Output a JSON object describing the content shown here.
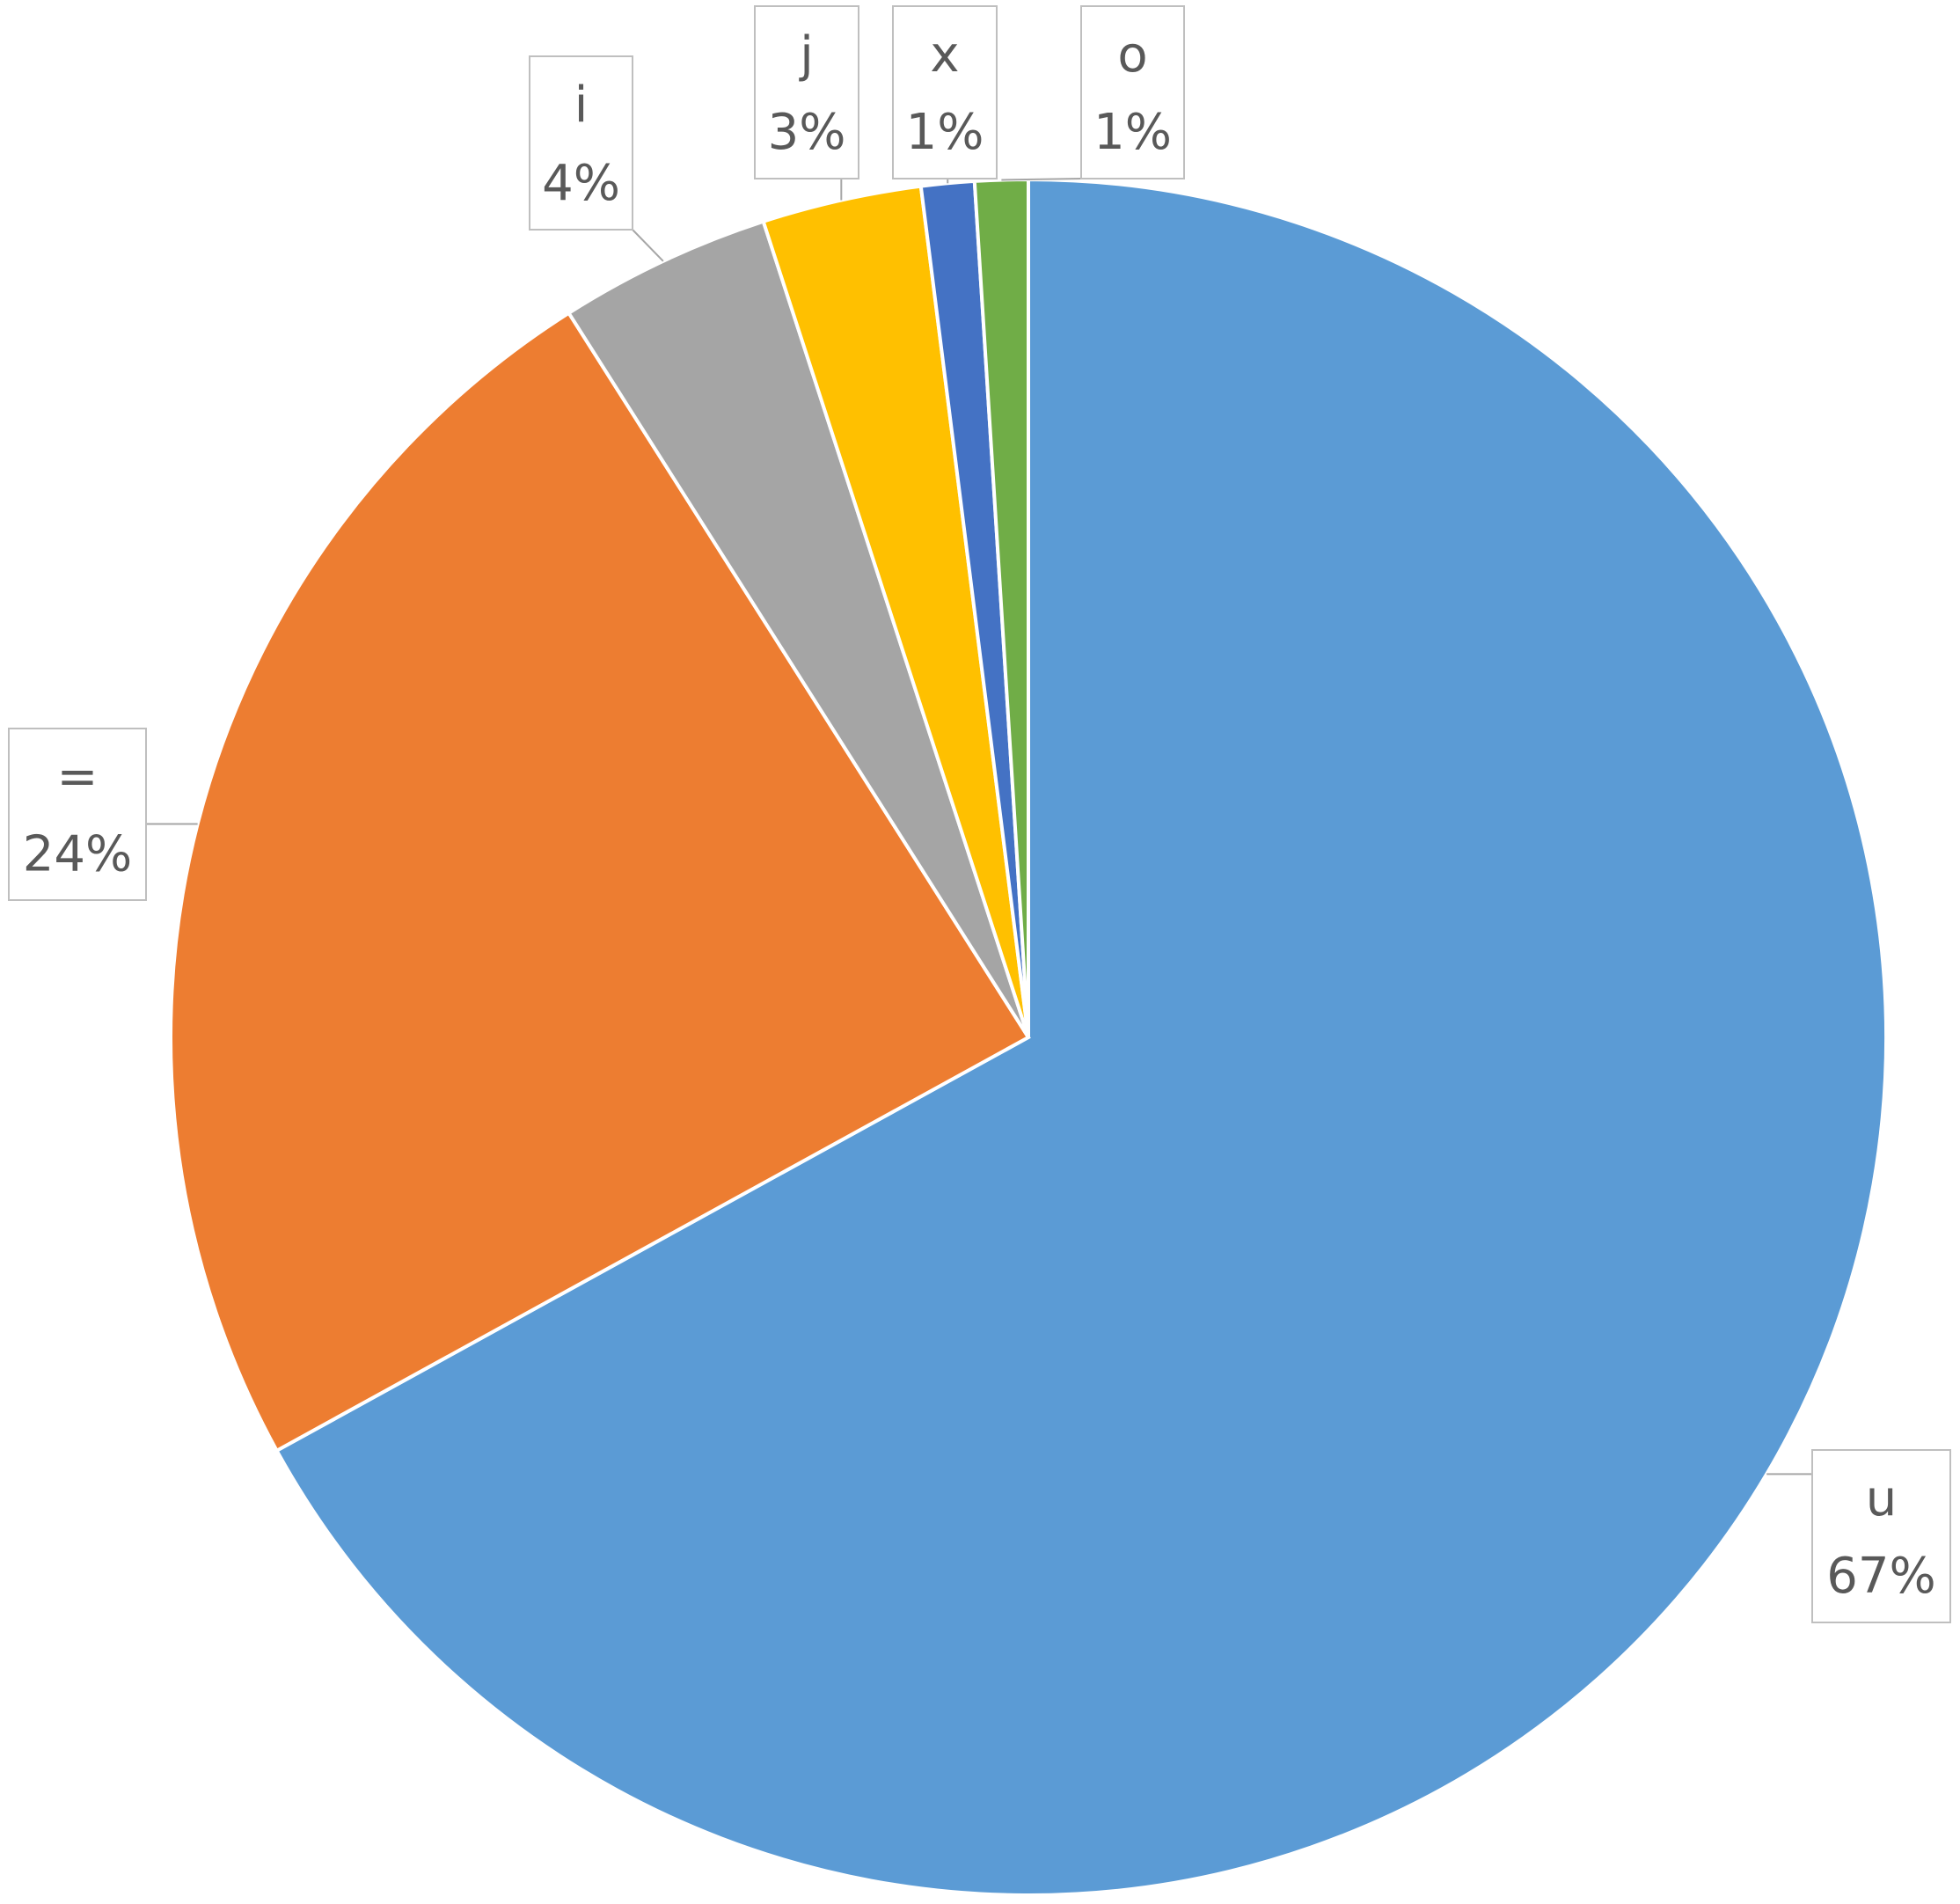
{
  "chart_data": {
    "type": "pie",
    "categories": [
      "u",
      "=",
      "i",
      "j",
      "x",
      "o"
    ],
    "values": [
      67,
      24,
      4,
      3,
      1,
      1
    ],
    "value_labels": [
      "67%",
      "24%",
      "4%",
      "3%",
      "1%",
      "1%"
    ],
    "colors": [
      "#5b9bd5",
      "#ed7d31",
      "#a5a5a5",
      "#ffc000",
      "#4472c4",
      "#70ad47"
    ]
  }
}
